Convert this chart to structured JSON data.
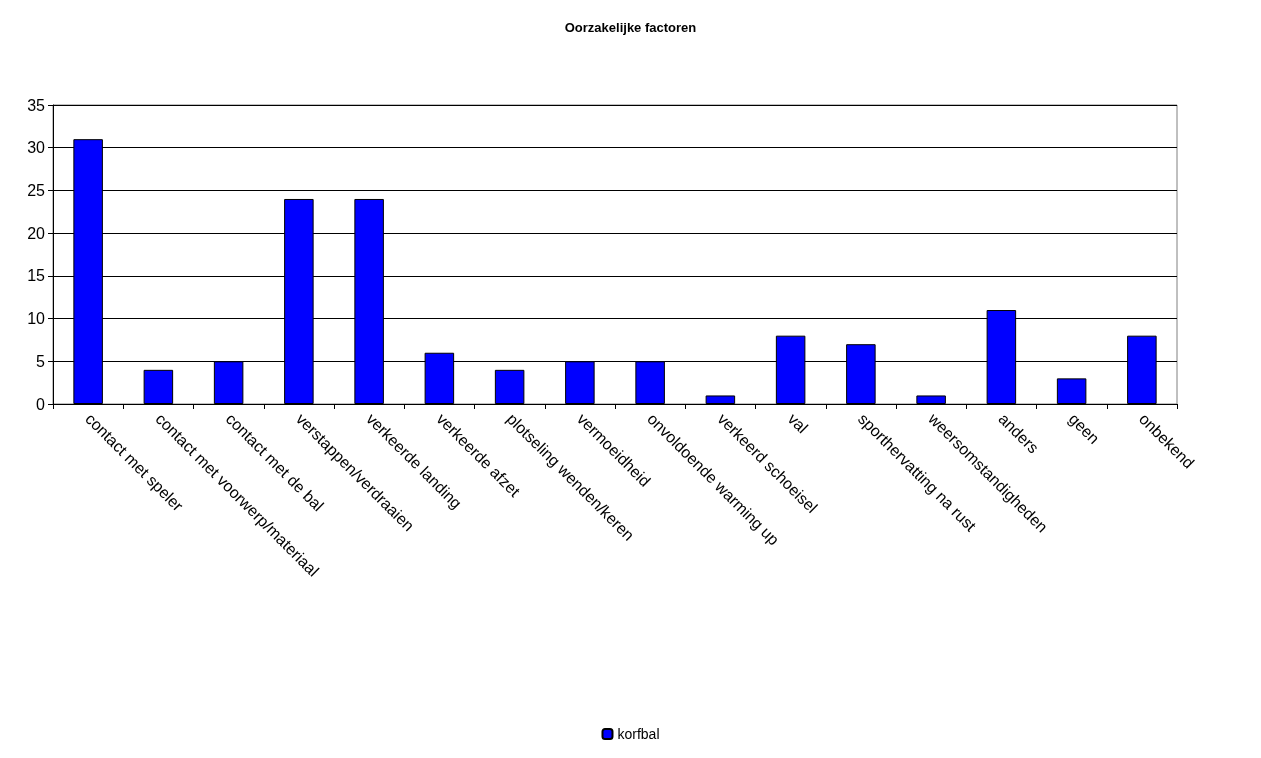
{
  "chart_data": {
    "type": "bar",
    "title": "Oorzakelijke factoren",
    "categories": [
      "contact met speler",
      "contact met voorwerp/materiaal",
      "contact met de bal",
      "verstappen/verdraaien",
      "verkeerde landing",
      "verkeerde afzet",
      "plotseling wenden/keren",
      "vermoeidheid",
      "onvoldoende warming up",
      "verkeerd schoeisel",
      "val",
      "sporthervatting na rust",
      "weersomstandigheden",
      "anders",
      "geen",
      "onbekend"
    ],
    "series": [
      {
        "name": "korfbal",
        "color": "#0000ff",
        "values": [
          31,
          4,
          5,
          24,
          24,
          6,
          4,
          5,
          5,
          1,
          8,
          7,
          1,
          11,
          3,
          8
        ]
      }
    ],
    "ylim": [
      0,
      35
    ],
    "yticks": [
      0,
      5,
      10,
      15,
      20,
      25,
      30,
      35
    ],
    "grid": "y",
    "legend": "bottom"
  }
}
